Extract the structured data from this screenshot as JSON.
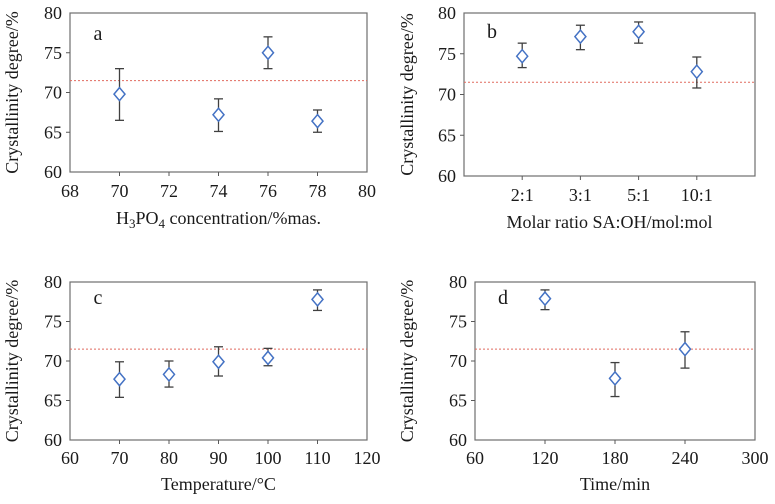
{
  "colors": {
    "marker": "#4472c4",
    "marker_fill": "#ffffff",
    "error_bar": "#404040",
    "ref_line": "#e06a5f",
    "frame": "#6e6e6e",
    "tick": "#595959",
    "text": "#1a1a1a"
  },
  "chart_data": [
    {
      "type": "scatter",
      "panel_label": "a",
      "ylabel": "Crystallinity degree/%",
      "xlabel": "H3PO4 concentration/%mas.",
      "xlabel_rich": [
        {
          "text": "H"
        },
        {
          "text": "3",
          "sub": true
        },
        {
          "text": "PO"
        },
        {
          "text": "4",
          "sub": true
        },
        {
          "text": " concentration/%mas."
        }
      ],
      "x_type": "numeric",
      "xlim": [
        68,
        80
      ],
      "xticks": [
        68,
        70,
        72,
        74,
        76,
        78,
        80
      ],
      "ylim": [
        60,
        80
      ],
      "yticks": [
        60,
        65,
        70,
        75,
        80
      ],
      "grid": false,
      "legend": "none",
      "ref_line_y": 71.5,
      "points": [
        {
          "x": 70,
          "y": 69.8,
          "err_low": 66.5,
          "err_high": 73.0
        },
        {
          "x": 74,
          "y": 67.2,
          "err_low": 65.1,
          "err_high": 69.2
        },
        {
          "x": 76,
          "y": 75.0,
          "err_low": 73.0,
          "err_high": 77.0
        },
        {
          "x": 78,
          "y": 66.4,
          "err_low": 65.0,
          "err_high": 67.8
        }
      ]
    },
    {
      "type": "scatter",
      "panel_label": "b",
      "ylabel": "Crystallinity degree/%",
      "xlabel": "Molar ratio SA:OH/mol:mol",
      "xlabel_rich": [
        {
          "text": "Molar ratio SA:OH/mol:mol"
        }
      ],
      "x_type": "category",
      "x_categories": [
        "2:1",
        "3:1",
        "5:1",
        "10:1"
      ],
      "x_category_pos": [
        0.2,
        0.4,
        0.6,
        0.8
      ],
      "ylim": [
        60,
        80
      ],
      "yticks": [
        60,
        65,
        70,
        75,
        80
      ],
      "grid": false,
      "legend": "none",
      "ref_line_y": 71.5,
      "points": [
        {
          "x": "2:1",
          "y": 74.7,
          "err_low": 73.3,
          "err_high": 76.3
        },
        {
          "x": "3:1",
          "y": 77.1,
          "err_low": 75.5,
          "err_high": 78.5
        },
        {
          "x": "5:1",
          "y": 77.7,
          "err_low": 76.3,
          "err_high": 78.9
        },
        {
          "x": "10:1",
          "y": 72.8,
          "err_low": 70.8,
          "err_high": 74.6
        }
      ]
    },
    {
      "type": "scatter",
      "panel_label": "c",
      "ylabel": "Crystallinity degree/%",
      "xlabel": "Temperature/°C",
      "xlabel_rich": [
        {
          "text": "Temperature/°C"
        }
      ],
      "x_type": "numeric",
      "xlim": [
        60,
        120
      ],
      "xticks": [
        60,
        70,
        80,
        90,
        100,
        110,
        120
      ],
      "ylim": [
        60,
        80
      ],
      "yticks": [
        60,
        65,
        70,
        75,
        80
      ],
      "grid": false,
      "legend": "none",
      "ref_line_y": 71.5,
      "points": [
        {
          "x": 70,
          "y": 67.7,
          "err_low": 65.4,
          "err_high": 69.9
        },
        {
          "x": 80,
          "y": 68.3,
          "err_low": 66.7,
          "err_high": 70.0
        },
        {
          "x": 90,
          "y": 69.9,
          "err_low": 68.1,
          "err_high": 71.8
        },
        {
          "x": 100,
          "y": 70.4,
          "err_low": 69.4,
          "err_high": 71.6
        },
        {
          "x": 110,
          "y": 77.8,
          "err_low": 76.4,
          "err_high": 79.0
        }
      ]
    },
    {
      "type": "scatter",
      "panel_label": "d",
      "ylabel": "Crystallinity degree/%",
      "xlabel": "Time/min",
      "xlabel_rich": [
        {
          "text": "Time/min"
        }
      ],
      "x_type": "numeric",
      "xlim": [
        60,
        300
      ],
      "xticks": [
        60,
        120,
        180,
        240,
        300
      ],
      "ylim": [
        60,
        80
      ],
      "yticks": [
        60,
        65,
        70,
        75,
        80
      ],
      "grid": false,
      "legend": "none",
      "ref_line_y": 71.5,
      "points": [
        {
          "x": 120,
          "y": 77.9,
          "err_low": 76.5,
          "err_high": 79.0
        },
        {
          "x": 180,
          "y": 67.8,
          "err_low": 65.5,
          "err_high": 69.8
        },
        {
          "x": 240,
          "y": 71.5,
          "err_low": 69.1,
          "err_high": 73.7
        }
      ]
    }
  ]
}
